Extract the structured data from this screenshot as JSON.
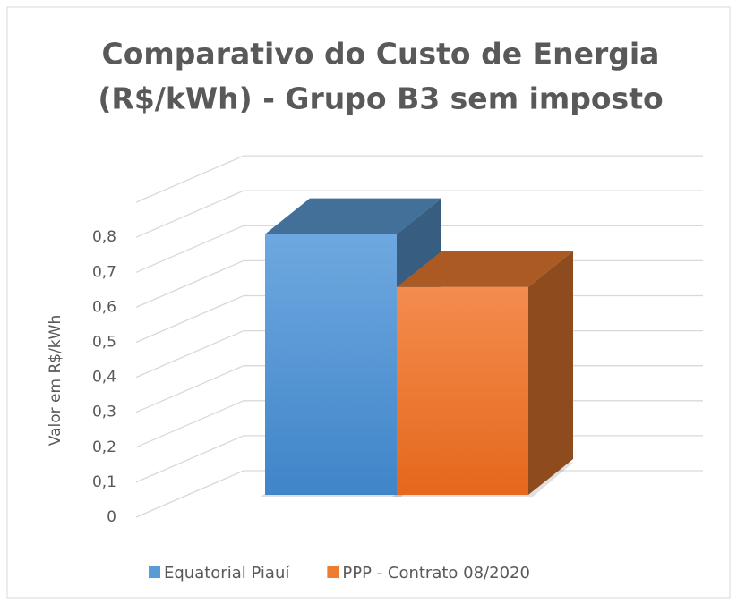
{
  "chart_data": {
    "type": "bar3d",
    "title": [
      "Comparativo do Custo de Energia",
      "(R$/kWh) - Grupo B3 sem imposto"
    ],
    "y_label": "Valor em R$/kWh",
    "categories": [
      null
    ],
    "series": [
      {
        "name": "Equatorial Piauí",
        "color": "#5b9bd5",
        "values": [
          0.74
        ]
      },
      {
        "name": "PPP - Contrato 08/2020",
        "color": "#ed7d31",
        "values": [
          0.59
        ]
      }
    ],
    "ylim": [
      0,
      0.9
    ],
    "yticks": [
      {
        "value": 0,
        "label": "0"
      },
      {
        "value": 0.1,
        "label": "0,1"
      },
      {
        "value": 0.2,
        "label": "0,2"
      },
      {
        "value": 0.3,
        "label": "0,3"
      },
      {
        "value": 0.4,
        "label": "0,4"
      },
      {
        "value": 0.5,
        "label": "0,5"
      },
      {
        "value": 0.6,
        "label": "0,6"
      },
      {
        "value": 0.7,
        "label": "0,7"
      },
      {
        "value": 0.8,
        "label": "0,8"
      }
    ],
    "grid": true,
    "legend": "bottom"
  }
}
